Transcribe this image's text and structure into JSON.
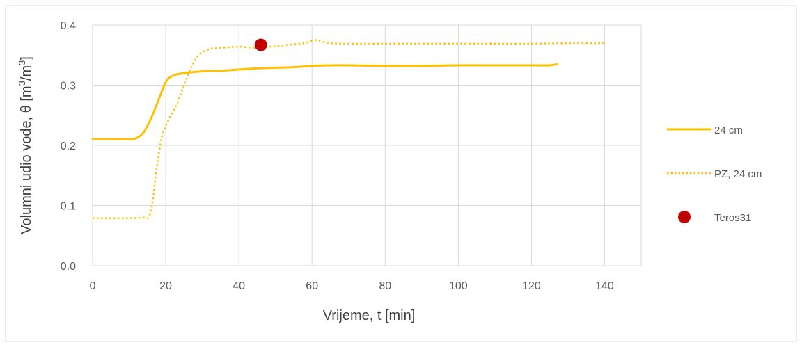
{
  "chart_data": {
    "type": "line",
    "xlabel": "Vrijeme, t [min]",
    "ylabel": {
      "prefix": "Volumni udio vode, θ [m",
      "sup1": "3",
      "mid": "/m",
      "sup2": "3",
      "suffix": "]"
    },
    "xlim": [
      0,
      150
    ],
    "ylim": [
      0,
      0.4
    ],
    "x_ticks": [
      0,
      20,
      40,
      60,
      80,
      100,
      120,
      140
    ],
    "y_ticks": [
      0.0,
      0.1,
      0.2,
      0.3,
      0.4
    ],
    "x_tick_labels": [
      "0",
      "20",
      "40",
      "60",
      "80",
      "100",
      "120",
      "140"
    ],
    "y_tick_labels": [
      "0.0",
      "0.1",
      "0.2",
      "0.3",
      "0.4"
    ],
    "grid": true,
    "legend_position": "right",
    "series": [
      {
        "name": "24 cm",
        "style": "solid",
        "color": "#FFC000",
        "x": [
          0,
          5,
          10,
          12,
          14,
          16,
          18,
          20,
          22,
          25,
          30,
          35,
          40,
          45,
          50,
          55,
          60,
          65,
          70,
          80,
          90,
          100,
          110,
          120,
          125,
          127
        ],
        "y": [
          0.211,
          0.21,
          0.21,
          0.212,
          0.222,
          0.245,
          0.275,
          0.305,
          0.316,
          0.32,
          0.323,
          0.324,
          0.326,
          0.328,
          0.329,
          0.33,
          0.332,
          0.333,
          0.333,
          0.332,
          0.332,
          0.333,
          0.333,
          0.333,
          0.333,
          0.335
        ]
      },
      {
        "name": "PZ, 24 cm",
        "style": "dotted",
        "color": "#FFC000",
        "x": [
          0,
          5,
          10,
          14,
          15.5,
          16.5,
          17.5,
          19,
          21,
          23,
          25,
          27,
          29,
          32,
          35,
          40,
          45,
          50,
          55,
          58,
          61,
          63,
          65,
          70,
          80,
          90,
          100,
          110,
          120,
          130,
          140
        ],
        "y": [
          0.079,
          0.079,
          0.079,
          0.08,
          0.082,
          0.11,
          0.16,
          0.215,
          0.245,
          0.268,
          0.3,
          0.33,
          0.35,
          0.36,
          0.362,
          0.364,
          0.362,
          0.365,
          0.368,
          0.37,
          0.375,
          0.372,
          0.37,
          0.369,
          0.369,
          0.369,
          0.369,
          0.369,
          0.369,
          0.37,
          0.37
        ]
      },
      {
        "name": "Teros31",
        "style": "marker",
        "color": "#C00000",
        "x": [
          46
        ],
        "y": [
          0.367
        ]
      }
    ]
  }
}
